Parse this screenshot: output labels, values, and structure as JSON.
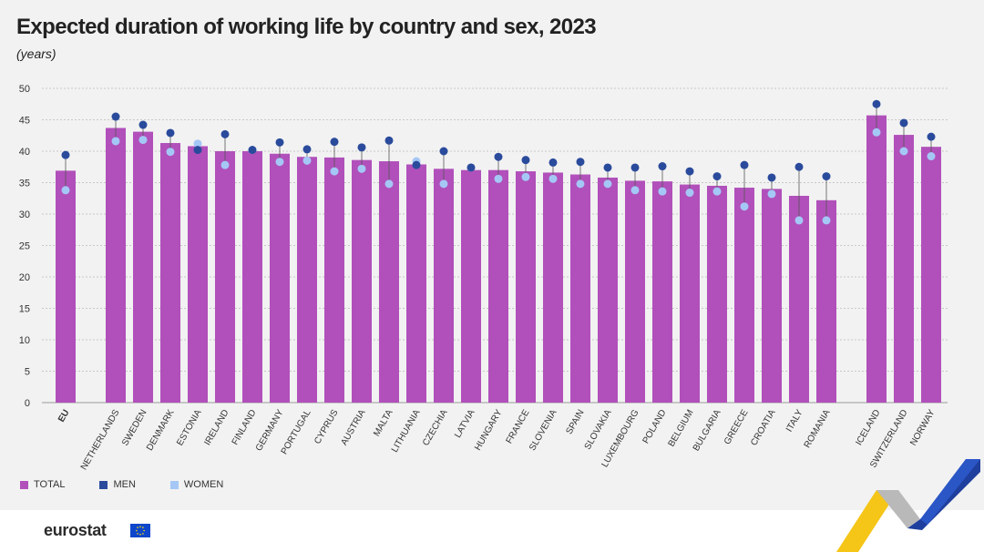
{
  "header": {
    "title": "Expected duration of working life by country and sex, 2023",
    "subtitle": "(years)"
  },
  "legend": {
    "total": "TOTAL",
    "men": "MEN",
    "women": "WOMEN"
  },
  "footer": {
    "logo": "eurostat"
  },
  "colors": {
    "total": "#b150bb",
    "men": "#2a4b9c",
    "women": "#a5c7f5",
    "grid": "#bbbbbb",
    "background": "#f2f2f2"
  },
  "chart_data": {
    "type": "bar",
    "ylim": [
      0,
      50
    ],
    "yticks": [
      0,
      5,
      10,
      15,
      20,
      25,
      30,
      35,
      40,
      45,
      50
    ],
    "grid": true,
    "legend_position": "bottom-left",
    "groups": [
      [
        "EU"
      ],
      [
        "NETHERLANDS",
        "SWEDEN",
        "DENMARK",
        "ESTONIA",
        "IRELAND",
        "FINLAND",
        "GERMANY",
        "PORTUGAL",
        "CYPRUS",
        "AUSTRIA",
        "MALTA",
        "LITHUANIA",
        "CZECHIA",
        "LATVIA",
        "HUNGARY",
        "FRANCE",
        "SLOVENIA",
        "SPAIN",
        "SLOVAKIA",
        "LUXEMBOURG",
        "POLAND",
        "BELGIUM",
        "BULGARIA",
        "GREECE",
        "CROATIA",
        "ITALY",
        "ROMANIA"
      ],
      [
        "ICELAND",
        "SWITZERLAND",
        "NORWAY"
      ]
    ],
    "categories": [
      "EU",
      "NETHERLANDS",
      "SWEDEN",
      "DENMARK",
      "ESTONIA",
      "IRELAND",
      "FINLAND",
      "GERMANY",
      "PORTUGAL",
      "CYPRUS",
      "AUSTRIA",
      "MALTA",
      "LITHUANIA",
      "CZECHIA",
      "LATVIA",
      "HUNGARY",
      "FRANCE",
      "SLOVENIA",
      "SPAIN",
      "SLOVAKIA",
      "LUXEMBOURG",
      "POLAND",
      "BELGIUM",
      "BULGARIA",
      "GREECE",
      "CROATIA",
      "ITALY",
      "ROMANIA",
      "ICELAND",
      "SWITZERLAND",
      "NORWAY"
    ],
    "series": [
      {
        "name": "TOTAL",
        "values": [
          36.9,
          43.7,
          43.1,
          41.3,
          40.8,
          40.0,
          40.0,
          39.6,
          39.1,
          39.0,
          38.6,
          38.4,
          37.9,
          37.2,
          37.0,
          37.0,
          36.8,
          36.6,
          36.3,
          35.8,
          35.3,
          35.2,
          34.7,
          34.5,
          34.2,
          34.0,
          32.9,
          32.2,
          45.7,
          42.6,
          40.7
        ]
      },
      {
        "name": "MEN",
        "values": [
          39.4,
          45.5,
          44.2,
          42.9,
          40.2,
          42.7,
          40.2,
          41.4,
          40.3,
          41.5,
          40.6,
          41.7,
          37.8,
          40.0,
          37.4,
          39.1,
          38.6,
          38.2,
          38.3,
          37.4,
          37.4,
          37.6,
          36.8,
          36.0,
          37.8,
          35.8,
          37.5,
          36.0,
          47.5,
          44.5,
          42.3
        ]
      },
      {
        "name": "WOMEN",
        "values": [
          33.8,
          41.6,
          41.8,
          39.9,
          41.2,
          37.8,
          40.2,
          38.3,
          38.5,
          36.8,
          37.2,
          34.8,
          38.4,
          34.8,
          37.4,
          35.6,
          35.9,
          35.6,
          34.8,
          34.8,
          33.8,
          33.6,
          33.4,
          33.6,
          31.2,
          33.2,
          29.0,
          29.0,
          43.0,
          40.0,
          39.2
        ]
      }
    ]
  }
}
